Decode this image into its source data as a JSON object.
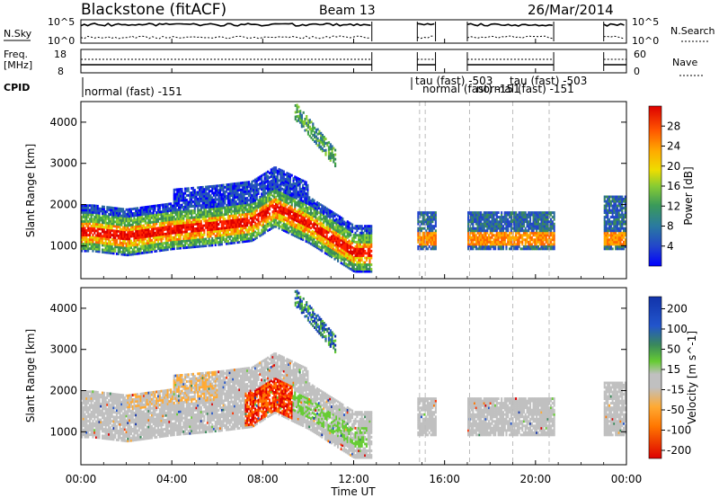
{
  "header": {
    "station": "Blackstone (fitACF)",
    "beam": "Beam 13",
    "date": "26/Mar/2014"
  },
  "top_panels": {
    "nsky_label": "N.Sky",
    "nsky_ticks": [
      "10^5",
      "10^0"
    ],
    "nsearch_label": "N.Search",
    "nsearch_ticks": [
      "10^5",
      "10^0"
    ],
    "freq_label_1": "Freq.",
    "freq_label_2": "[MHz]",
    "freq_ticks": [
      "18",
      "8"
    ],
    "nave_label": "Nave",
    "nave_ticks": [
      "60",
      "0"
    ],
    "cpid_label": "CPID",
    "cpid_entries": [
      "normal (fast) -151",
      "tau (fast) -503",
      "normal (fast) -151",
      "tau (fast) -503",
      "normal (fast) -151"
    ]
  },
  "chart_data": [
    {
      "type": "heatmap",
      "name": "power-panel",
      "ylabel": "Slant Range [km]",
      "y_ticks": [
        "1000",
        "2000",
        "3000",
        "4000"
      ],
      "ylim": [
        200,
        4500
      ],
      "colorbar_label": "Power [dB]",
      "colorbar_ticks": [
        "4",
        "8",
        "12",
        "16",
        "20",
        "24",
        "28"
      ],
      "colorbar_colors": [
        "#0000ff",
        "#2244cc",
        "#2a6aa0",
        "#3a8a5a",
        "#44aa44",
        "#88cc33",
        "#dddd00",
        "#ffaa00",
        "#ff6600",
        "#ff2200",
        "#dd0000"
      ],
      "observed_segments_hours": [
        [
          0.0,
          12.8
        ],
        [
          14.8,
          15.6
        ],
        [
          17.0,
          20.8
        ],
        [
          23.0,
          24.0
        ]
      ],
      "dominant_echo_band": [
        {
          "time_h": 0.5,
          "range_km": 1300
        },
        {
          "time_h": 2.0,
          "range_km": 1200
        },
        {
          "time_h": 4.0,
          "range_km": 1350
        },
        {
          "time_h": 6.0,
          "range_km": 1450
        },
        {
          "time_h": 7.5,
          "range_km": 1550
        },
        {
          "time_h": 8.5,
          "range_km": 1900
        },
        {
          "time_h": 10.0,
          "range_km": 1500
        },
        {
          "time_h": 12.0,
          "range_km": 800
        }
      ]
    },
    {
      "type": "heatmap",
      "name": "velocity-panel",
      "ylabel": "Slant Range [km]",
      "y_ticks": [
        "1000",
        "2000",
        "3000",
        "4000"
      ],
      "ylim": [
        200,
        4500
      ],
      "colorbar_label": "Velocity [m s^-1]",
      "colorbar_ticks": [
        "200",
        "100",
        "50",
        "15",
        "-15",
        "-50",
        "-100",
        "-200"
      ],
      "colorbar_colors": [
        "#1133aa",
        "#2255cc",
        "#3a8a5a",
        "#66cc33",
        "#c0c0c0",
        "#ffaa33",
        "#ff7700",
        "#ff3300",
        "#dd0000"
      ],
      "observed_segments_hours": [
        [
          0.0,
          12.8
        ],
        [
          14.8,
          15.6
        ],
        [
          17.0,
          20.8
        ],
        [
          23.0,
          24.0
        ]
      ]
    }
  ],
  "x_axis": {
    "label": "Time UT",
    "ticks": [
      "00:00",
      "04:00",
      "08:00",
      "12:00",
      "16:00",
      "20:00",
      "00:00"
    ],
    "range_hours": [
      0,
      24
    ]
  }
}
